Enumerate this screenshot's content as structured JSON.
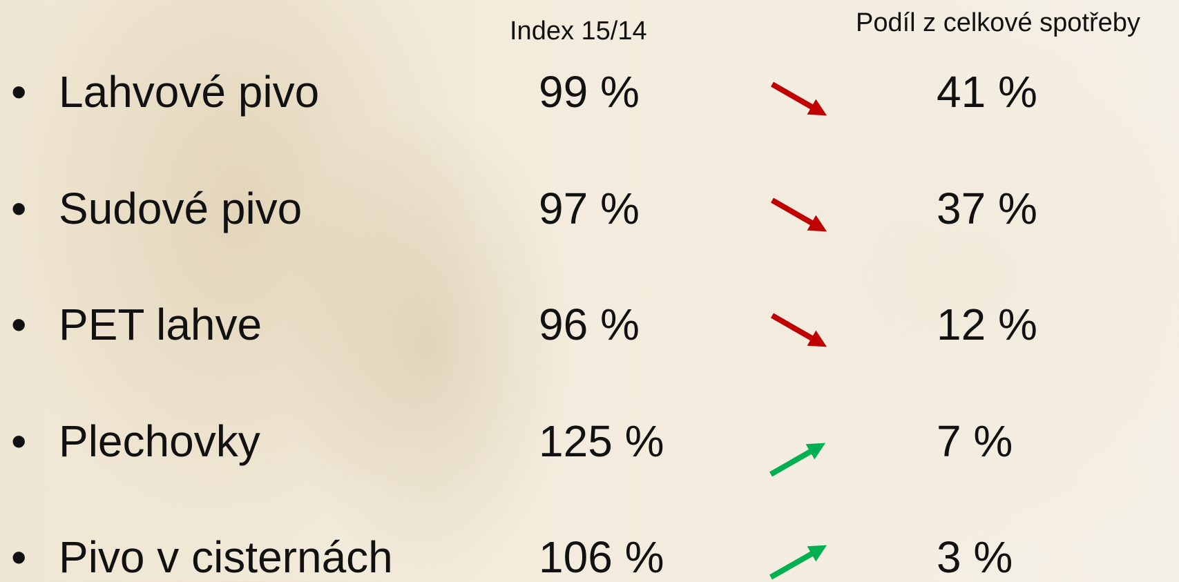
{
  "header": {
    "index": "Index 15/14",
    "share": "Podíl z celkové spotřeby"
  },
  "rows": [
    {
      "label": "Lahvové pivo",
      "index": "99 %",
      "share": "41 %"
    },
    {
      "label": "Sudové pivo",
      "index": "97 %",
      "share": "37 %"
    },
    {
      "label": "PET lahve",
      "index": "96 %",
      "share": "12 %"
    },
    {
      "label": "Plechovky",
      "index": "125 %",
      "share": "7 %"
    },
    {
      "label": "Pivo v cisternách",
      "index": "106 %",
      "share": "3 %"
    }
  ]
}
